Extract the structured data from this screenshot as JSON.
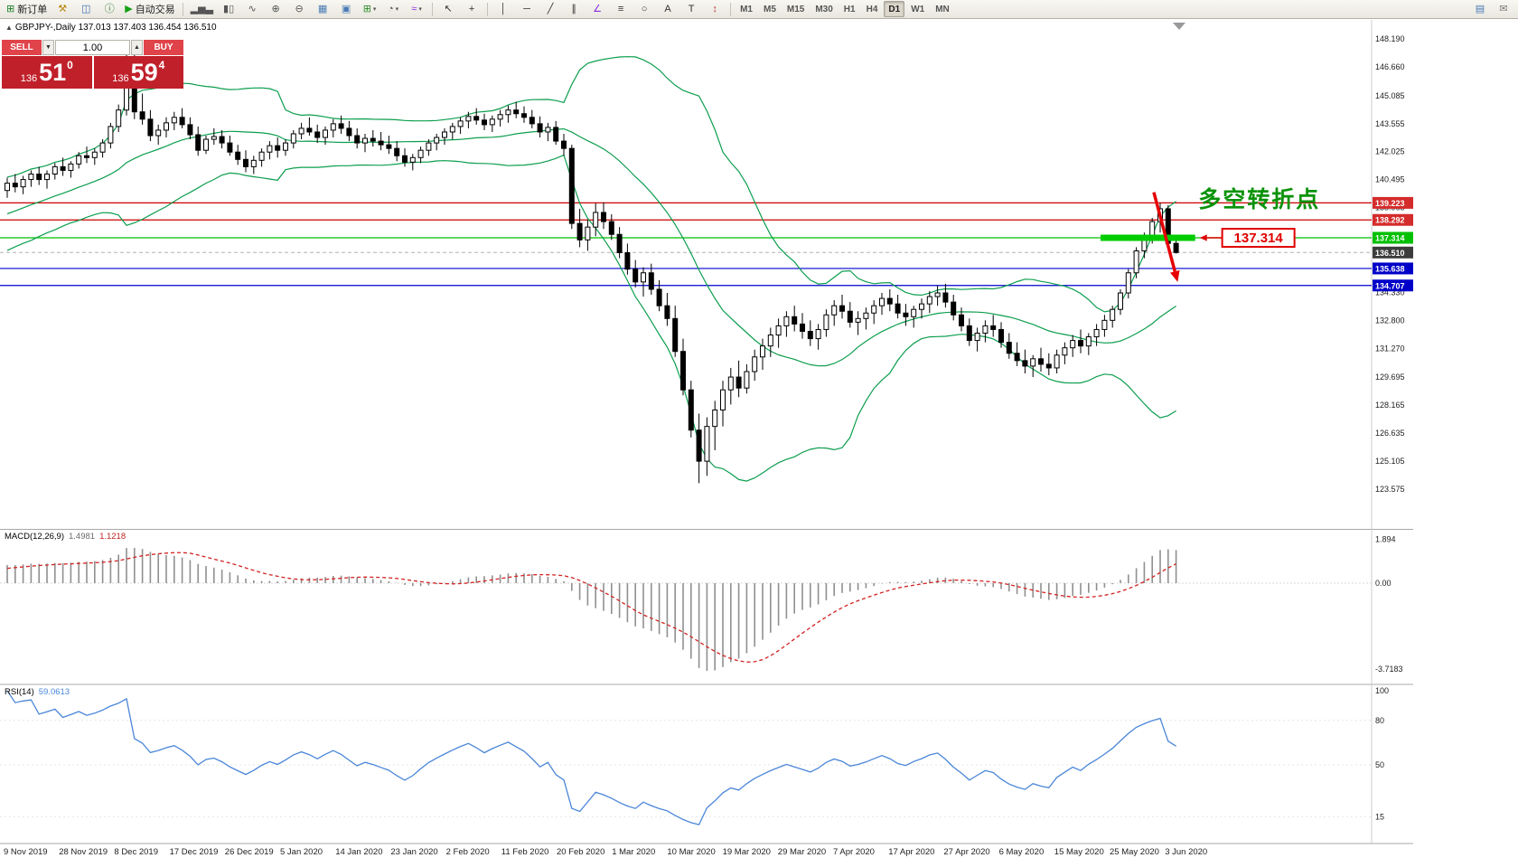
{
  "toolbar": {
    "groups": [
      {
        "name": "file-group",
        "items": [
          {
            "name": "new-order-button",
            "glyph": "⊞",
            "color": "#1b7f2a",
            "label": "新订单"
          },
          {
            "name": "metaeditor-button",
            "glyph": "⚒",
            "color": "#b8860b"
          },
          {
            "name": "market-watch-button",
            "glyph": "◫",
            "color": "#3d6db5"
          },
          {
            "name": "info-button",
            "glyph": "ⓘ",
            "color": "#2e7d32"
          },
          {
            "name": "autotrading-button",
            "glyph": "▶",
            "color": "#18a018",
            "label": "自动交易"
          }
        ]
      },
      {
        "name": "chart-group",
        "items": [
          {
            "name": "bar-chart-icon",
            "glyph": "▂▅▃",
            "color": "#555555"
          },
          {
            "name": "candlestick-icon",
            "glyph": "▮▯",
            "color": "#555555"
          },
          {
            "name": "line-chart-icon",
            "glyph": "∿",
            "color": "#555555"
          },
          {
            "name": "zoom-in-icon",
            "glyph": "⊕",
            "color": "#555555"
          },
          {
            "name": "zoom-out-icon",
            "glyph": "⊖",
            "color": "#555555"
          },
          {
            "name": "tile-windows-icon",
            "glyph": "▦",
            "color": "#4a7ab5"
          },
          {
            "name": "cascade-windows-icon",
            "glyph": "▣",
            "color": "#4a7ab5"
          },
          {
            "name": "new-chart-icon",
            "glyph": "⊞",
            "color": "#2c8c2c",
            "dropdown": true
          },
          {
            "name": "profiles-icon",
            "glyph": "◔",
            "color": "#555555",
            "dropdown": true
          },
          {
            "name": "indicators-icon",
            "glyph": "≈",
            "color": "#8a2be2",
            "dropdown": true
          }
        ]
      },
      {
        "name": "cursor-group",
        "items": [
          {
            "name": "cursor-icon",
            "glyph": "↖",
            "color": "#333333"
          },
          {
            "name": "crosshair-icon",
            "glyph": "+",
            "color": "#333333"
          }
        ]
      },
      {
        "name": "objects-group",
        "items": [
          {
            "name": "vertical-line-icon",
            "glyph": "│",
            "color": "#333333"
          },
          {
            "name": "horizontal-line-icon",
            "glyph": "─",
            "color": "#333333"
          },
          {
            "name": "trendline-icon",
            "glyph": "╱",
            "color": "#333333"
          },
          {
            "name": "channel-icon",
            "glyph": "∥",
            "color": "#333333"
          },
          {
            "name": "andrews-pitchfork-icon",
            "glyph": "∠",
            "color": "#8a2be2"
          },
          {
            "name": "fibonacci-icon",
            "glyph": "≡",
            "color": "#333333"
          },
          {
            "name": "shapes-icon",
            "glyph": "○",
            "color": "#333333"
          },
          {
            "name": "text-icon",
            "glyph": "A",
            "color": "#333333"
          },
          {
            "name": "label-icon",
            "glyph": "T",
            "color": "#333333"
          },
          {
            "name": "arrows-icon",
            "glyph": "↕",
            "color": "#c04040"
          }
        ]
      }
    ],
    "timeframes": [
      {
        "label": "M1"
      },
      {
        "label": "M5"
      },
      {
        "label": "M15"
      },
      {
        "label": "M30"
      },
      {
        "label": "H1"
      },
      {
        "label": "H4"
      },
      {
        "label": "D1",
        "active": true
      },
      {
        "label": "W1"
      },
      {
        "label": "MN"
      }
    ],
    "right_items": [
      {
        "name": "data-window-icon",
        "glyph": "▤",
        "color": "#4a7ab5"
      },
      {
        "name": "messages-icon",
        "glyph": "✉",
        "color": "#777777"
      }
    ]
  },
  "chart": {
    "symbol_ohlc": "GBPJPY-,Daily  137.013 137.403 136.454 136.510",
    "trade_panel": {
      "sell_label": "SELL",
      "buy_label": "BUY",
      "volume": "1.00",
      "sell_big": "136",
      "sell_pips": "51",
      "sell_frac": "0",
      "buy_big": "136",
      "buy_pips": "59",
      "buy_frac": "4"
    },
    "indicators": {
      "macd": {
        "title": "MACD(12,26,9)",
        "value_main": "1.4981",
        "value_signal": "1.1218"
      },
      "rsi": {
        "title": "RSI(14)",
        "value": "59.0613"
      }
    }
  },
  "chart_data": {
    "type": "candlestick",
    "symbol": "GBPJPY-",
    "timeframe": "Daily",
    "last_ohlc": {
      "open": 137.013,
      "high": 137.403,
      "low": 136.454,
      "close": 136.51
    },
    "current_price": 136.51,
    "x_labels": [
      "9 Nov 2019",
      "28 Nov 2019",
      "8 Dec 2019",
      "17 Dec 2019",
      "26 Dec 2019",
      "5 Jan 2020",
      "14 Jan 2020",
      "23 Jan 2020",
      "2 Feb 2020",
      "11 Feb 2020",
      "20 Feb 2020",
      "1 Mar 2020",
      "10 Mar 2020",
      "19 Mar 2020",
      "29 Mar 2020",
      "7 Apr 2020",
      "17 Apr 2020",
      "27 Apr 2020",
      "6 May 2020",
      "15 May 2020",
      "25 May 2020",
      "3 Jun 2020"
    ],
    "y_ticks": [
      148.19,
      146.66,
      145.085,
      143.555,
      142.025,
      140.495,
      138.965,
      134.33,
      132.8,
      131.27,
      129.695,
      128.165,
      126.635,
      125.105,
      123.575
    ],
    "candles": [
      [
        139.9,
        140.6,
        139.5,
        140.3
      ],
      [
        140.3,
        140.8,
        139.8,
        140.1
      ],
      [
        140.1,
        140.7,
        139.7,
        140.5
      ],
      [
        140.5,
        141.0,
        140.1,
        140.8
      ],
      [
        140.8,
        141.2,
        140.2,
        140.5
      ],
      [
        140.5,
        141.0,
        140.0,
        140.8
      ],
      [
        140.8,
        141.4,
        140.5,
        141.2
      ],
      [
        141.2,
        141.7,
        140.7,
        141.0
      ],
      [
        141.0,
        141.5,
        140.6,
        141.35
      ],
      [
        141.35,
        142.0,
        141.1,
        141.8
      ],
      [
        141.8,
        142.3,
        141.4,
        141.7
      ],
      [
        141.7,
        142.2,
        141.3,
        142.0
      ],
      [
        142.0,
        142.7,
        141.7,
        142.5
      ],
      [
        142.5,
        143.6,
        142.2,
        143.4
      ],
      [
        143.4,
        144.6,
        143.1,
        144.3
      ],
      [
        144.3,
        147.95,
        144.0,
        146.8
      ],
      [
        146.8,
        147.3,
        143.8,
        144.2
      ],
      [
        144.2,
        145.2,
        143.5,
        143.8
      ],
      [
        143.8,
        144.3,
        142.6,
        142.9
      ],
      [
        142.9,
        143.5,
        142.4,
        143.2
      ],
      [
        143.2,
        143.9,
        142.8,
        143.6
      ],
      [
        143.6,
        144.2,
        143.2,
        143.9
      ],
      [
        143.9,
        144.4,
        143.3,
        143.5
      ],
      [
        143.5,
        143.9,
        142.7,
        142.95
      ],
      [
        142.95,
        143.4,
        141.8,
        142.1
      ],
      [
        142.1,
        142.9,
        141.9,
        142.7
      ],
      [
        142.7,
        143.3,
        142.4,
        142.85
      ],
      [
        142.85,
        143.2,
        142.2,
        142.5
      ],
      [
        142.5,
        142.9,
        141.8,
        142.0
      ],
      [
        142.0,
        142.4,
        141.3,
        141.6
      ],
      [
        141.6,
        142.1,
        140.9,
        141.2
      ],
      [
        141.2,
        141.8,
        140.8,
        141.55
      ],
      [
        141.55,
        142.2,
        141.2,
        142.0
      ],
      [
        142.0,
        142.6,
        141.6,
        142.35
      ],
      [
        142.35,
        142.8,
        141.7,
        142.1
      ],
      [
        142.1,
        142.7,
        141.8,
        142.5
      ],
      [
        142.5,
        143.2,
        142.2,
        143.0
      ],
      [
        143.0,
        143.6,
        142.7,
        143.3
      ],
      [
        143.3,
        143.9,
        142.9,
        143.1
      ],
      [
        143.1,
        143.5,
        142.5,
        142.8
      ],
      [
        142.8,
        143.4,
        142.4,
        143.2
      ],
      [
        143.2,
        143.8,
        142.8,
        143.55
      ],
      [
        143.55,
        144.0,
        143.0,
        143.3
      ],
      [
        143.3,
        143.7,
        142.6,
        142.9
      ],
      [
        142.9,
        143.3,
        142.2,
        142.5
      ],
      [
        142.5,
        143.0,
        142.0,
        142.75
      ],
      [
        142.75,
        143.2,
        142.3,
        142.6
      ],
      [
        142.6,
        143.1,
        142.1,
        142.4
      ],
      [
        142.4,
        142.9,
        141.9,
        142.2
      ],
      [
        142.2,
        142.6,
        141.5,
        141.8
      ],
      [
        141.8,
        142.2,
        141.2,
        141.45
      ],
      [
        141.45,
        141.9,
        141.0,
        141.7
      ],
      [
        141.7,
        142.3,
        141.4,
        142.1
      ],
      [
        142.1,
        142.7,
        141.8,
        142.5
      ],
      [
        142.5,
        143.0,
        142.1,
        142.8
      ],
      [
        142.8,
        143.3,
        142.4,
        143.1
      ],
      [
        143.1,
        143.6,
        142.7,
        143.4
      ],
      [
        143.4,
        143.9,
        143.0,
        143.7
      ],
      [
        143.7,
        144.2,
        143.3,
        143.95
      ],
      [
        143.95,
        144.4,
        143.5,
        143.75
      ],
      [
        143.75,
        144.1,
        143.2,
        143.5
      ],
      [
        143.5,
        144.0,
        143.1,
        143.8
      ],
      [
        143.8,
        144.3,
        143.4,
        144.05
      ],
      [
        144.05,
        144.55,
        143.6,
        144.3
      ],
      [
        144.3,
        144.75,
        143.85,
        144.1
      ],
      [
        144.1,
        144.5,
        143.6,
        143.9
      ],
      [
        143.9,
        144.3,
        143.3,
        143.55
      ],
      [
        143.55,
        143.95,
        142.8,
        143.1
      ],
      [
        143.1,
        143.6,
        142.6,
        143.35
      ],
      [
        143.35,
        143.7,
        142.4,
        142.6
      ],
      [
        142.6,
        143.0,
        141.8,
        142.2
      ],
      [
        142.2,
        142.4,
        137.8,
        138.1
      ],
      [
        138.1,
        138.9,
        136.8,
        137.2
      ],
      [
        137.2,
        138.3,
        136.6,
        137.9
      ],
      [
        137.9,
        139.2,
        137.4,
        138.7
      ],
      [
        138.7,
        139.25,
        137.8,
        138.2
      ],
      [
        138.2,
        138.6,
        137.2,
        137.5
      ],
      [
        137.5,
        137.9,
        136.2,
        136.5
      ],
      [
        136.5,
        137.0,
        135.3,
        135.6
      ],
      [
        135.6,
        136.1,
        134.6,
        134.9
      ],
      [
        134.9,
        135.7,
        134.1,
        135.4
      ],
      [
        135.4,
        135.9,
        134.2,
        134.5
      ],
      [
        134.5,
        135.0,
        133.3,
        133.6
      ],
      [
        133.6,
        134.3,
        132.5,
        132.9
      ],
      [
        132.9,
        133.6,
        130.8,
        131.1
      ],
      [
        131.1,
        131.8,
        128.7,
        129.0
      ],
      [
        129.0,
        129.5,
        126.4,
        126.8
      ],
      [
        126.8,
        127.7,
        123.9,
        125.1
      ],
      [
        125.1,
        127.5,
        124.3,
        127.0
      ],
      [
        127.0,
        128.4,
        125.7,
        127.9
      ],
      [
        127.9,
        129.5,
        127.0,
        129.0
      ],
      [
        129.0,
        130.2,
        128.2,
        129.7
      ],
      [
        129.7,
        130.6,
        128.6,
        129.1
      ],
      [
        129.1,
        130.4,
        128.8,
        130.0
      ],
      [
        130.0,
        131.2,
        129.5,
        130.8
      ],
      [
        130.8,
        131.8,
        130.1,
        131.4
      ],
      [
        131.4,
        132.4,
        130.8,
        132.0
      ],
      [
        132.0,
        132.9,
        131.3,
        132.5
      ],
      [
        132.5,
        133.3,
        131.9,
        133.0
      ],
      [
        133.0,
        133.6,
        132.2,
        132.6
      ],
      [
        132.6,
        133.2,
        131.8,
        132.2
      ],
      [
        132.2,
        132.8,
        131.4,
        131.8
      ],
      [
        131.8,
        132.6,
        131.2,
        132.3
      ],
      [
        132.3,
        133.4,
        131.9,
        133.1
      ],
      [
        133.1,
        133.9,
        132.5,
        133.6
      ],
      [
        133.6,
        134.2,
        132.9,
        133.3
      ],
      [
        133.3,
        133.8,
        132.4,
        132.7
      ],
      [
        132.7,
        133.3,
        132.0,
        132.9
      ],
      [
        132.9,
        133.5,
        132.3,
        133.2
      ],
      [
        133.2,
        133.9,
        132.6,
        133.6
      ],
      [
        133.6,
        134.3,
        133.1,
        134.0
      ],
      [
        134.0,
        134.5,
        133.3,
        133.7
      ],
      [
        133.7,
        134.2,
        132.9,
        133.2
      ],
      [
        133.2,
        133.7,
        132.5,
        133.0
      ],
      [
        133.0,
        133.6,
        132.4,
        133.4
      ],
      [
        133.4,
        134.0,
        132.9,
        133.7
      ],
      [
        133.7,
        134.4,
        133.2,
        134.1
      ],
      [
        134.1,
        134.7,
        133.6,
        134.3
      ],
      [
        134.3,
        134.8,
        133.5,
        133.8
      ],
      [
        133.8,
        134.2,
        132.8,
        133.1
      ],
      [
        133.1,
        133.5,
        132.2,
        132.5
      ],
      [
        132.5,
        132.9,
        131.4,
        131.7
      ],
      [
        131.7,
        132.4,
        131.1,
        132.1
      ],
      [
        132.1,
        132.8,
        131.6,
        132.5
      ],
      [
        132.5,
        133.1,
        131.9,
        132.3
      ],
      [
        132.3,
        132.7,
        131.3,
        131.6
      ],
      [
        131.6,
        132.1,
        130.7,
        131.0
      ],
      [
        131.0,
        131.6,
        130.3,
        130.6
      ],
      [
        130.6,
        131.2,
        129.9,
        130.3
      ],
      [
        130.3,
        130.9,
        129.7,
        130.7
      ],
      [
        130.7,
        131.3,
        130.0,
        130.4
      ],
      [
        130.4,
        131.0,
        129.8,
        130.2
      ],
      [
        130.2,
        131.2,
        129.9,
        130.9
      ],
      [
        130.9,
        131.6,
        130.4,
        131.3
      ],
      [
        131.3,
        132.0,
        130.8,
        131.7
      ],
      [
        131.7,
        132.3,
        131.0,
        131.4
      ],
      [
        131.4,
        132.1,
        130.9,
        131.9
      ],
      [
        131.9,
        132.6,
        131.4,
        132.3
      ],
      [
        132.3,
        133.1,
        131.9,
        132.8
      ],
      [
        132.8,
        133.6,
        132.4,
        133.4
      ],
      [
        133.4,
        134.5,
        133.1,
        134.3
      ],
      [
        134.3,
        135.6,
        134.0,
        135.4
      ],
      [
        135.4,
        136.8,
        135.1,
        136.6
      ],
      [
        136.6,
        137.6,
        136.2,
        137.4
      ],
      [
        137.4,
        138.4,
        137.0,
        138.2
      ],
      [
        138.2,
        139.22,
        137.6,
        138.9
      ],
      [
        138.9,
        139.1,
        136.9,
        137.01
      ],
      [
        137.01,
        137.4,
        136.45,
        136.51
      ]
    ],
    "bollinger": {
      "period": 20,
      "deviation": 2,
      "color": "#0c9e4e"
    },
    "h_lines": [
      {
        "price": 139.223,
        "color": "#cc0000",
        "label_bg": "#d42b2b"
      },
      {
        "price": 138.292,
        "color": "#cc0000",
        "label_bg": "#d42b2b"
      },
      {
        "price": 137.314,
        "color": "#00c000",
        "label_bg": "#00c000"
      },
      {
        "price": 135.638,
        "color": "#0000cc",
        "label_bg": "#0000c8"
      },
      {
        "price": 134.707,
        "color": "#0000cc",
        "label_bg": "#0000c8"
      }
    ],
    "macd": {
      "title": "MACD(12,26,9)",
      "params": [
        12,
        26,
        9
      ],
      "last_main": 1.4981,
      "last_signal": 1.1218,
      "scale": [
        "1.894",
        "0.00",
        "-3.7183"
      ],
      "histogram_color": "#909090",
      "signal_color": "#d42222"
    },
    "rsi": {
      "title": "RSI(14)",
      "period": 14,
      "last": 59.0613,
      "scale": [
        "100",
        "80",
        "50",
        "15"
      ],
      "color": "#4a86d8"
    },
    "annotations": {
      "turning_point_text": {
        "text": "多空转折点",
        "bar": 149.8,
        "price": 139.0,
        "color": "#0a930a"
      },
      "price_callout": {
        "text": "137.314",
        "price": 137.314,
        "box_bar": 152.8,
        "color": "#e00000"
      },
      "support_bar": {
        "price": 137.314,
        "from_bar": 137.5,
        "to_bar": 149.4,
        "color": "#00cc00"
      },
      "down_arrow": {
        "from_bar": 144.2,
        "from_price": 139.8,
        "to_bar": 147.2,
        "to_price": 134.9,
        "color": "#e60000"
      }
    }
  }
}
